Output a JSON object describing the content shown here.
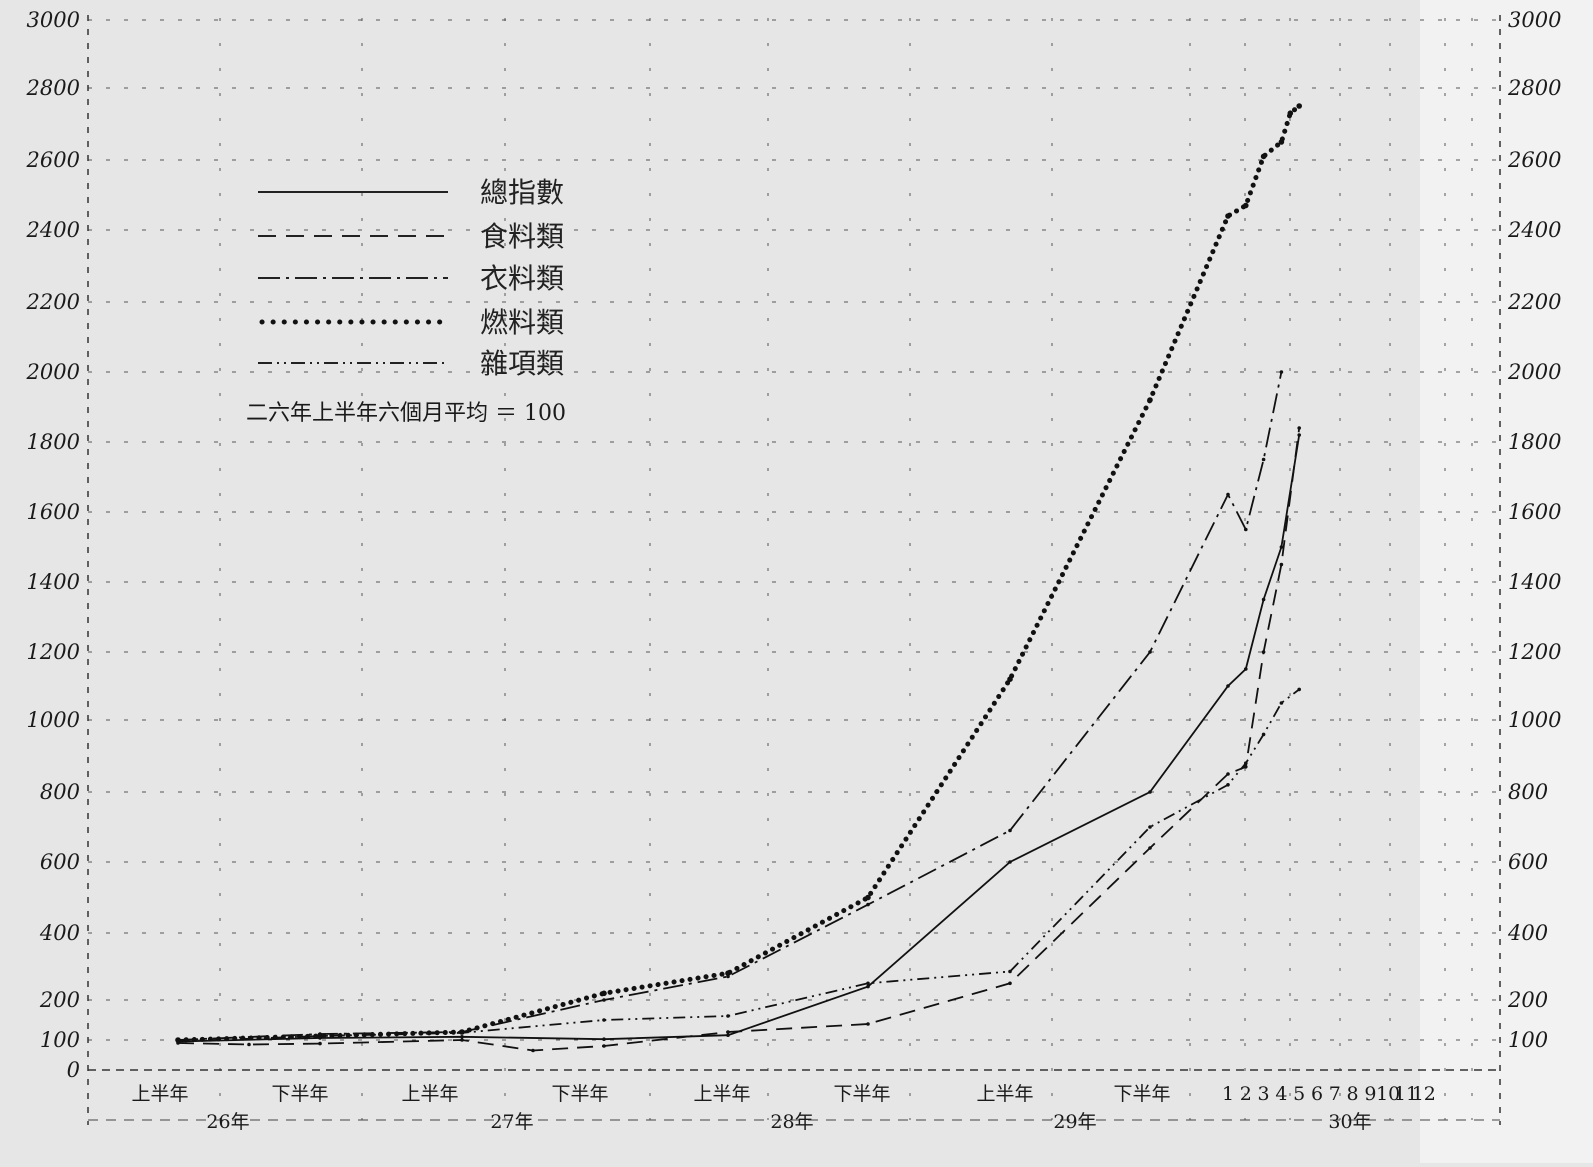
{
  "chart_data": {
    "type": "line",
    "title": "",
    "note": "二六年上半年六個月平均 ＝ 100",
    "xlabel": "",
    "ylabel": "",
    "ylim": [
      0,
      3000
    ],
    "yticks": [
      0,
      100,
      200,
      400,
      600,
      800,
      1000,
      1200,
      1400,
      1600,
      1800,
      2000,
      2200,
      2400,
      2600,
      2800,
      3000
    ],
    "grid": true,
    "legend_position": "top-left",
    "x_tick_labels": [
      {
        "label": "上半年",
        "group": "26年"
      },
      {
        "label": "下半年",
        "group": "26年"
      },
      {
        "label": "上半年",
        "group": "27年"
      },
      {
        "label": "下半年",
        "group": "27年"
      },
      {
        "label": "上半年",
        "group": "28年"
      },
      {
        "label": "下半年",
        "group": "28年"
      },
      {
        "label": "上半年",
        "group": "29年"
      },
      {
        "label": "下半年",
        "group": "29年"
      },
      {
        "label": "1",
        "group": "30年"
      },
      {
        "label": "2",
        "group": "30年"
      },
      {
        "label": "3",
        "group": "30年"
      },
      {
        "label": "4",
        "group": "30年"
      },
      {
        "label": "5",
        "group": "30年"
      },
      {
        "label": "6",
        "group": "30年"
      },
      {
        "label": "7",
        "group": "30年"
      },
      {
        "label": "8",
        "group": "30年"
      },
      {
        "label": "9",
        "group": "30年"
      },
      {
        "label": "10",
        "group": "30年"
      },
      {
        "label": "11",
        "group": "30年"
      },
      {
        "label": "12",
        "group": "30年"
      }
    ],
    "x_groups": [
      "26年",
      "27年",
      "28年",
      "29年",
      "30年"
    ],
    "series": [
      {
        "name": "總指數",
        "style": "solid",
        "points": [
          [
            0,
            95
          ],
          [
            1,
            105
          ],
          [
            2,
            108
          ],
          [
            3,
            102
          ],
          [
            4,
            112
          ],
          [
            5,
            240
          ],
          [
            6,
            600
          ],
          [
            7,
            800
          ],
          [
            8,
            1100
          ],
          [
            9,
            1150
          ],
          [
            10,
            1350
          ],
          [
            11,
            1500
          ],
          [
            12,
            1820
          ]
        ]
      },
      {
        "name": "食料類",
        "style": "dash",
        "points": [
          [
            0,
            90
          ],
          [
            0.5,
            85
          ],
          [
            1,
            88
          ],
          [
            2,
            100
          ],
          [
            2.5,
            65
          ],
          [
            3,
            80
          ],
          [
            4,
            120
          ],
          [
            5,
            140
          ],
          [
            6,
            250
          ],
          [
            7,
            640
          ],
          [
            8,
            850
          ],
          [
            9,
            870
          ],
          [
            10,
            1200
          ],
          [
            11,
            1450
          ],
          [
            12,
            1840
          ]
        ]
      },
      {
        "name": "衣料類",
        "style": "dashdot",
        "points": [
          [
            0,
            100
          ],
          [
            1,
            115
          ],
          [
            2,
            120
          ],
          [
            3,
            200
          ],
          [
            4,
            270
          ],
          [
            5,
            480
          ],
          [
            6,
            690
          ],
          [
            7,
            1200
          ],
          [
            8,
            1650
          ],
          [
            9,
            1550
          ],
          [
            10,
            1750
          ],
          [
            11,
            2000
          ]
        ]
      },
      {
        "name": "燃料類",
        "style": "dotted",
        "points": [
          [
            0,
            100
          ],
          [
            1,
            110
          ],
          [
            2,
            120
          ],
          [
            3,
            220
          ],
          [
            4,
            280
          ],
          [
            5,
            500
          ],
          [
            6,
            1120
          ],
          [
            7,
            1920
          ],
          [
            8,
            2440
          ],
          [
            9,
            2470
          ],
          [
            10,
            2610
          ],
          [
            11,
            2650
          ],
          [
            11.5,
            2730
          ],
          [
            12,
            2750
          ]
        ]
      },
      {
        "name": "雜項類",
        "style": "dotdash",
        "points": [
          [
            0,
            95
          ],
          [
            1,
            110
          ],
          [
            2,
            118
          ],
          [
            3,
            150
          ],
          [
            4,
            160
          ],
          [
            5,
            250
          ],
          [
            6,
            285
          ],
          [
            7,
            700
          ],
          [
            8,
            820
          ],
          [
            9,
            880
          ],
          [
            10,
            960
          ],
          [
            11,
            1050
          ],
          [
            12,
            1090
          ]
        ]
      }
    ]
  }
}
